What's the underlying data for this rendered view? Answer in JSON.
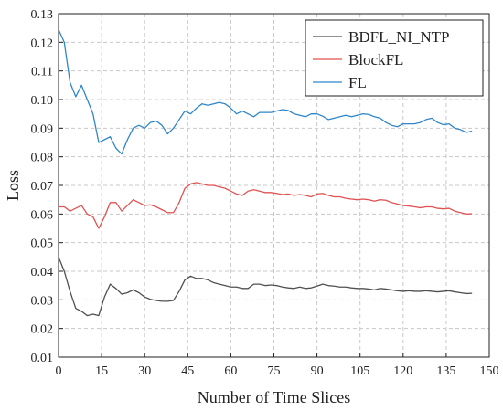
{
  "chart_data": {
    "type": "line",
    "xlabel": "Number of Time Slices",
    "ylabel": "Loss",
    "xlim": [
      0,
      150
    ],
    "ylim": [
      0.01,
      0.13
    ],
    "xticks": [
      "0",
      "15",
      "30",
      "45",
      "60",
      "75",
      "90",
      "105",
      "120",
      "135",
      "150"
    ],
    "yticks": [
      "0.01",
      "0.02",
      "0.03",
      "0.04",
      "0.05",
      "0.06",
      "0.07",
      "0.08",
      "0.09",
      "0.10",
      "0.11",
      "0.12",
      "0.13"
    ],
    "grid": true,
    "legend_position": "top-right",
    "x": [
      0,
      2,
      4,
      6,
      8,
      10,
      12,
      14,
      16,
      18,
      20,
      22,
      24,
      26,
      28,
      30,
      32,
      34,
      36,
      38,
      40,
      42,
      44,
      46,
      48,
      50,
      52,
      54,
      56,
      58,
      60,
      62,
      64,
      66,
      68,
      70,
      72,
      74,
      76,
      78,
      80,
      82,
      84,
      86,
      88,
      90,
      92,
      94,
      96,
      98,
      100,
      102,
      104,
      106,
      108,
      110,
      112,
      114,
      116,
      118,
      120,
      122,
      124,
      126,
      128,
      130,
      132,
      134,
      136,
      138,
      140,
      142,
      144
    ],
    "series": [
      {
        "name": "BDFL_NI_NTP",
        "color": "#505050",
        "values": [
          0.045,
          0.04,
          0.033,
          0.027,
          0.026,
          0.0245,
          0.025,
          0.0245,
          0.031,
          0.0355,
          0.034,
          0.032,
          0.0325,
          0.0335,
          0.0325,
          0.031,
          0.0302,
          0.0298,
          0.0295,
          0.0295,
          0.0298,
          0.033,
          0.037,
          0.0383,
          0.0375,
          0.0375,
          0.037,
          0.036,
          0.0355,
          0.035,
          0.0345,
          0.0345,
          0.034,
          0.034,
          0.0355,
          0.0355,
          0.035,
          0.0352,
          0.035,
          0.0345,
          0.0342,
          0.034,
          0.0345,
          0.034,
          0.0342,
          0.0348,
          0.0355,
          0.035,
          0.0348,
          0.0345,
          0.0345,
          0.0342,
          0.034,
          0.034,
          0.0338,
          0.0335,
          0.034,
          0.0338,
          0.0335,
          0.0332,
          0.033,
          0.0332,
          0.033,
          0.033,
          0.0332,
          0.033,
          0.0328,
          0.033,
          0.0332,
          0.0328,
          0.0325,
          0.0322,
          0.0323
        ]
      },
      {
        "name": "BlockFL",
        "color": "#e05252",
        "values": [
          0.0625,
          0.0625,
          0.061,
          0.062,
          0.063,
          0.06,
          0.059,
          0.055,
          0.059,
          0.064,
          0.064,
          0.061,
          0.063,
          0.065,
          0.064,
          0.063,
          0.0632,
          0.0625,
          0.0615,
          0.0605,
          0.0605,
          0.064,
          0.069,
          0.0705,
          0.071,
          0.0705,
          0.07,
          0.07,
          0.0695,
          0.069,
          0.068,
          0.067,
          0.0665,
          0.068,
          0.0685,
          0.068,
          0.0675,
          0.0675,
          0.0672,
          0.0668,
          0.067,
          0.0665,
          0.0668,
          0.0665,
          0.066,
          0.067,
          0.0672,
          0.0665,
          0.066,
          0.066,
          0.0655,
          0.0652,
          0.065,
          0.0652,
          0.065,
          0.0645,
          0.065,
          0.0648,
          0.064,
          0.0635,
          0.063,
          0.0628,
          0.0625,
          0.0622,
          0.0625,
          0.0625,
          0.062,
          0.0618,
          0.062,
          0.061,
          0.0605,
          0.06,
          0.0601
        ]
      },
      {
        "name": "FL",
        "color": "#2f86c9",
        "values": [
          0.1245,
          0.12,
          0.106,
          0.101,
          0.105,
          0.1,
          0.095,
          0.085,
          0.086,
          0.087,
          0.083,
          0.081,
          0.086,
          0.09,
          0.091,
          0.09,
          0.092,
          0.0925,
          0.091,
          0.088,
          0.09,
          0.093,
          0.096,
          0.095,
          0.097,
          0.0985,
          0.098,
          0.0985,
          0.099,
          0.0985,
          0.097,
          0.095,
          0.096,
          0.095,
          0.094,
          0.0955,
          0.0955,
          0.0955,
          0.096,
          0.0965,
          0.0962,
          0.095,
          0.0945,
          0.094,
          0.095,
          0.095,
          0.0942,
          0.093,
          0.0935,
          0.094,
          0.0945,
          0.094,
          0.0945,
          0.095,
          0.0948,
          0.094,
          0.0935,
          0.092,
          0.091,
          0.0905,
          0.0915,
          0.0915,
          0.0915,
          0.092,
          0.093,
          0.0935,
          0.092,
          0.0912,
          0.0915,
          0.09,
          0.0895,
          0.0885,
          0.089
        ]
      }
    ]
  }
}
